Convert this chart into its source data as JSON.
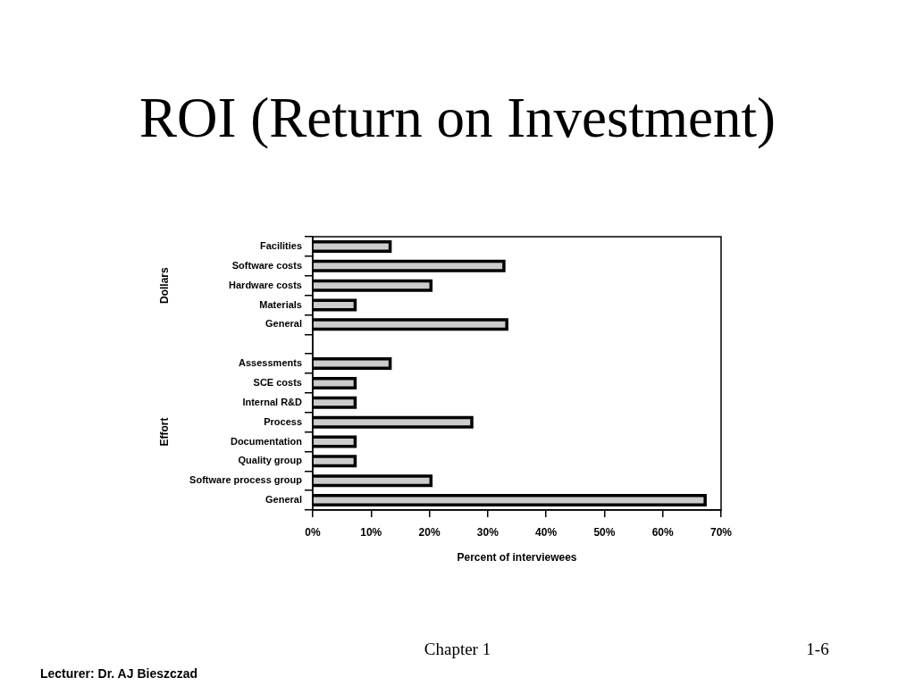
{
  "chart_data": {
    "type": "bar",
    "orientation": "horizontal",
    "title": "ROI (Return on Investment)",
    "xlabel": "Percent of interviewees",
    "categories": [
      "Facilities",
      "Software costs",
      "Hardware costs",
      "Materials",
      "General",
      null,
      "Assessments",
      "SCE costs",
      "Internal R&D",
      "Process",
      "Documentation",
      "Quality group",
      "Software process group",
      "General"
    ],
    "values": [
      13,
      32.5,
      20,
      7,
      33,
      null,
      13,
      7,
      7,
      27,
      7,
      7,
      20,
      67
    ],
    "color": "#cccccc",
    "xlim": [
      0,
      70
    ],
    "xticks": [
      {
        "value": 0,
        "label": "0%"
      },
      {
        "value": 10,
        "label": "10%"
      },
      {
        "value": 20,
        "label": "20%"
      },
      {
        "value": 30,
        "label": "30%"
      },
      {
        "value": 40,
        "label": "40%"
      },
      {
        "value": 50,
        "label": "50%"
      },
      {
        "value": 60,
        "label": "60%"
      },
      {
        "value": 70,
        "label": "70%"
      }
    ],
    "annotations": [
      "Dollars",
      "Effort",
      "Chapter 1",
      "1-6",
      "Lecturer: Dr. AJ Bieszczad"
    ]
  }
}
